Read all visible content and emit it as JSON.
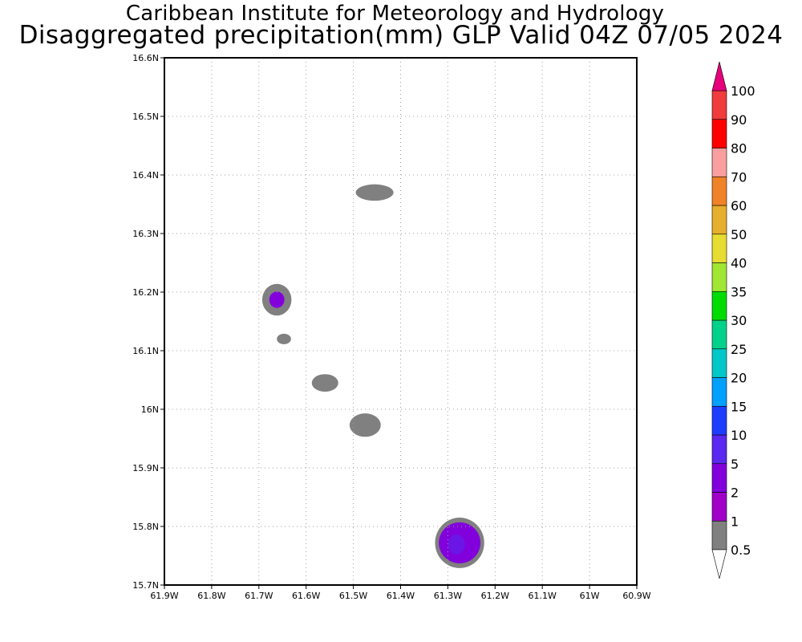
{
  "header": {
    "title_line1": "Caribbean Institute for Meteorology and Hydrology",
    "title_line2": "Disaggregated precipitation(mm) GLP Valid 04Z 07/05 2024"
  },
  "map": {
    "lon_range": [
      -61.9,
      -60.9
    ],
    "lat_range": [
      15.7,
      16.6
    ],
    "grid": "dotted",
    "x_ticks": [
      {
        "value": -61.9,
        "label": "61.9W"
      },
      {
        "value": -61.8,
        "label": "61.8W"
      },
      {
        "value": -61.7,
        "label": "61.7W"
      },
      {
        "value": -61.6,
        "label": "61.6W"
      },
      {
        "value": -61.5,
        "label": "61.5W"
      },
      {
        "value": -61.4,
        "label": "61.4W"
      },
      {
        "value": -61.3,
        "label": "61.3W"
      },
      {
        "value": -61.2,
        "label": "61.2W"
      },
      {
        "value": -61.1,
        "label": "61.1W"
      },
      {
        "value": -61.0,
        "label": "61W"
      },
      {
        "value": -60.9,
        "label": "60.9W"
      }
    ],
    "y_ticks": [
      {
        "value": 15.7,
        "label": "15.7N"
      },
      {
        "value": 15.8,
        "label": "15.8N"
      },
      {
        "value": 15.9,
        "label": "15.9N"
      },
      {
        "value": 16.0,
        "label": "16N"
      },
      {
        "value": 16.1,
        "label": "16.1N"
      },
      {
        "value": 16.2,
        "label": "16.2N"
      },
      {
        "value": 16.3,
        "label": "16.3N"
      },
      {
        "value": 16.4,
        "label": "16.4N"
      },
      {
        "value": 16.5,
        "label": "16.5N"
      },
      {
        "value": 16.6,
        "label": "16.6N"
      }
    ],
    "precip_cells": [
      {
        "lon": -61.455,
        "lat": 16.37,
        "rlon": 0.04,
        "rlat": 0.014,
        "level": "0.5-1"
      },
      {
        "lon": -61.662,
        "lat": 16.187,
        "rlon": 0.031,
        "rlat": 0.027,
        "level": "0.5-1",
        "core": {
          "rlon": 0.016,
          "rlat": 0.014,
          "level": "2-5"
        }
      },
      {
        "lon": -61.647,
        "lat": 16.12,
        "rlon": 0.015,
        "rlat": 0.009,
        "level": "0.5-1"
      },
      {
        "lon": -61.56,
        "lat": 16.045,
        "rlon": 0.028,
        "rlat": 0.015,
        "level": "0.5-1"
      },
      {
        "lon": -61.475,
        "lat": 15.973,
        "rlon": 0.033,
        "rlat": 0.02,
        "level": "0.5-1"
      },
      {
        "lon": -61.275,
        "lat": 15.772,
        "rlon": 0.052,
        "rlat": 0.043,
        "level": "0.5-1",
        "core": {
          "rlon": 0.044,
          "rlat": 0.035,
          "level": "2-5"
        },
        "core2": {
          "rlon": 0.018,
          "rlat": 0.017,
          "level": "5-10"
        }
      }
    ]
  },
  "colorbar": {
    "levels": [
      {
        "label": "0.5",
        "color": "#ffffff"
      },
      {
        "label": "1",
        "color": "#808080"
      },
      {
        "label": "2",
        "color": "#a000c8"
      },
      {
        "label": "5",
        "color": "#8200dc"
      },
      {
        "label": "10",
        "color": "#5a28f0"
      },
      {
        "label": "15",
        "color": "#1e3cff"
      },
      {
        "label": "20",
        "color": "#00a0ff"
      },
      {
        "label": "25",
        "color": "#00c8c8"
      },
      {
        "label": "30",
        "color": "#00d28c"
      },
      {
        "label": "35",
        "color": "#00dc00"
      },
      {
        "label": "40",
        "color": "#a0e632"
      },
      {
        "label": "50",
        "color": "#e6dc32"
      },
      {
        "label": "60",
        "color": "#e6af2d"
      },
      {
        "label": "70",
        "color": "#f08228"
      },
      {
        "label": "80",
        "color": "#fa9f9f"
      },
      {
        "label": "90",
        "color": "#ff0000"
      },
      {
        "label": "100",
        "color": "#f03c3c"
      }
    ],
    "top_arrow_color": "#e6007a",
    "bottom_arrow_color": "#ffffff"
  }
}
